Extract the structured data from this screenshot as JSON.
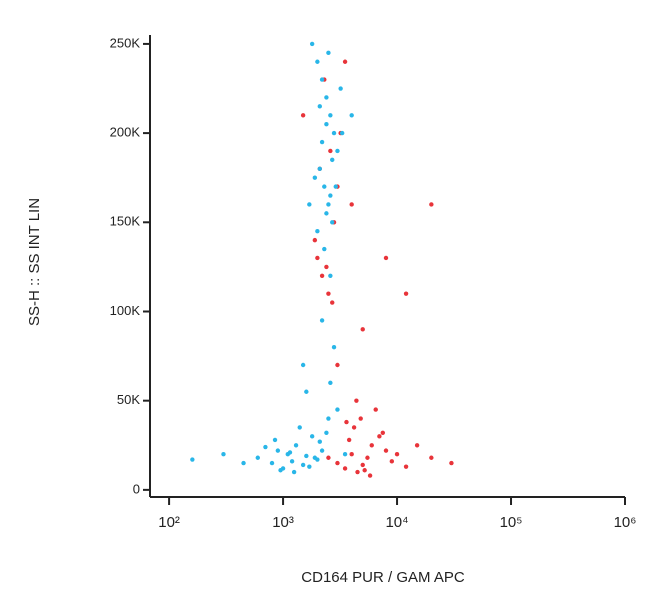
{
  "chart_data": {
    "type": "scatter",
    "x_label": "CD164 PUR / GAM APC",
    "y_label": "SS-H :: SS INT LIN",
    "log_x": true,
    "xlim": [
      68,
      1000000
    ],
    "xticks": [
      {
        "value": 100,
        "label": "10²"
      },
      {
        "value": 1000,
        "label": "10³"
      },
      {
        "value": 10000,
        "label": "10⁴"
      },
      {
        "value": 100000,
        "label": "10⁵"
      },
      {
        "value": 1000000,
        "label": "10⁶"
      }
    ],
    "ylim": [
      -4000,
      255000
    ],
    "yticks": [
      {
        "value": 0,
        "label": "0"
      },
      {
        "value": 50000,
        "label": "50K"
      },
      {
        "value": 100000,
        "label": "100K"
      },
      {
        "value": 150000,
        "label": "150K"
      },
      {
        "value": 200000,
        "label": "200K"
      },
      {
        "value": 250000,
        "label": "250K"
      }
    ],
    "series": [
      {
        "color": "#e8343a",
        "x": [
          3000,
          3500,
          4000,
          4500,
          5000,
          5500,
          6000,
          7000,
          8000,
          9000,
          4200,
          4800,
          5200,
          6500,
          3800,
          10000,
          12000,
          15000,
          20000,
          30000,
          4400,
          5800,
          3600,
          7500,
          2500,
          2000,
          2200,
          2500,
          2800,
          3000,
          1900,
          2400,
          2600,
          3200,
          4000,
          2100,
          2700,
          5000,
          8000,
          1500,
          3500,
          12000,
          2300,
          20000,
          3000
        ],
        "y": [
          15000,
          12000,
          20000,
          10000,
          14000,
          18000,
          25000,
          30000,
          22000,
          16000,
          35000,
          40000,
          11000,
          45000,
          28000,
          20000,
          13000,
          25000,
          18000,
          15000,
          50000,
          8000,
          38000,
          32000,
          18000,
          130000,
          120000,
          110000,
          150000,
          170000,
          140000,
          125000,
          190000,
          200000,
          160000,
          180000,
          105000,
          90000,
          130000,
          210000,
          240000,
          110000,
          230000,
          160000,
          70000
        ]
      },
      {
        "color": "#29b6e8",
        "x": [
          600,
          800,
          900,
          1000,
          1100,
          1200,
          1300,
          1500,
          1600,
          1800,
          2000,
          2200,
          2500,
          700,
          950,
          1400,
          1700,
          2100,
          300,
          450,
          3000,
          2600,
          1250,
          1900,
          850,
          1150,
          2400,
          1600,
          160,
          3500,
          1800,
          2000,
          2200,
          2400,
          2600,
          2800,
          3000,
          2100,
          2300,
          2500,
          2700,
          1900,
          2200,
          2400,
          2600,
          3200,
          2000,
          2300,
          2700,
          2500,
          2100,
          2900,
          2400,
          1700,
          2600,
          3300,
          2200,
          2800,
          1500,
          4000
        ],
        "y": [
          18000,
          15000,
          22000,
          12000,
          20000,
          16000,
          25000,
          14000,
          19000,
          30000,
          17000,
          22000,
          40000,
          24000,
          11000,
          35000,
          13000,
          27000,
          20000,
          15000,
          45000,
          60000,
          10000,
          18000,
          28000,
          21000,
          32000,
          55000,
          17000,
          20000,
          250000,
          240000,
          230000,
          220000,
          210000,
          200000,
          190000,
          180000,
          170000,
          160000,
          150000,
          175000,
          195000,
          205000,
          165000,
          225000,
          145000,
          135000,
          185000,
          245000,
          215000,
          170000,
          155000,
          160000,
          120000,
          200000,
          95000,
          80000,
          70000,
          210000
        ]
      }
    ]
  }
}
